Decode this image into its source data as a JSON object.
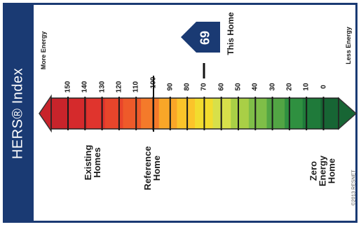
{
  "title": "HERS® Index",
  "left_end_label": "More Energy",
  "right_end_label": "Less Energy",
  "scale_labels": [
    "150",
    "140",
    "130",
    "120",
    "110",
    "100",
    "90",
    "80",
    "70",
    "60",
    "50",
    "40",
    "30",
    "20",
    "10",
    "0"
  ],
  "this_home": {
    "score": "69",
    "label": "This Home"
  },
  "bottom_labels": {
    "existing": "Existing\nHomes",
    "reference": "Reference\nHome",
    "zero": "Zero Energy\nHome"
  },
  "copyright": "©2013 RESNET",
  "colors": {
    "brand": "#1a3a73",
    "scale": [
      "#c8242b",
      "#d52a2c",
      "#e0342d",
      "#e8452b",
      "#ee5a2a",
      "#f47a2a",
      "#f9a628",
      "#fbc42a",
      "#f2dc2e",
      "#d7e04a",
      "#a9cf46",
      "#7fbe48",
      "#52a544",
      "#2f9040",
      "#1f7a3a",
      "#176534"
    ]
  }
}
